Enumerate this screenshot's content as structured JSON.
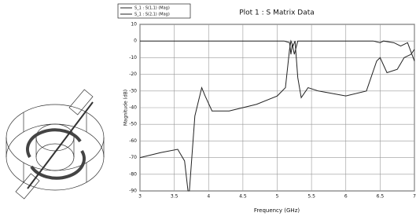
{
  "chart_data": {
    "type": "line",
    "title": "Plot 1 : S Matrix Data",
    "x_label": "Frequency (GHz)",
    "y_label": "Magnitude (dB)",
    "xlim": [
      3,
      7
    ],
    "ylim": [
      -90,
      10
    ],
    "xticks": [
      3,
      3.5,
      4,
      4.5,
      5,
      5.5,
      6,
      6.5,
      7
    ],
    "yticks": [
      10,
      0,
      -10,
      -20,
      -30,
      -40,
      -50,
      -60,
      -70,
      -80,
      -90
    ],
    "grid": true,
    "legend": "top-left",
    "series": [
      {
        "name": "S_1 : S(1,1) (Mag)",
        "color": "#222222",
        "x": [
          3,
          5.1,
          5.18,
          5.2,
          5.22,
          5.25,
          5.3,
          6.4,
          6.5,
          6.55,
          6.7,
          6.8,
          6.9,
          7
        ],
        "values": [
          0,
          0,
          -1,
          -8,
          -2,
          -8,
          0,
          0,
          -1,
          0,
          -1,
          -3,
          -1,
          -12
        ]
      },
      {
        "name": "S_1 : S(2,1) (Mag)",
        "color": "#222222",
        "x": [
          3,
          3.3,
          3.55,
          3.65,
          3.7,
          3.72,
          3.8,
          3.9,
          3.95,
          4.05,
          4.3,
          4.7,
          5.0,
          5.12,
          5.18,
          5.2,
          5.23,
          5.26,
          5.3,
          5.35,
          5.45,
          5.6,
          6.0,
          6.3,
          6.45,
          6.5,
          6.6,
          6.75,
          6.85,
          6.95,
          7
        ],
        "values": [
          -70,
          -67,
          -65,
          -72,
          -90,
          -90,
          -45,
          -28,
          -33,
          -42,
          -42,
          -38,
          -33,
          -28,
          -5,
          0,
          -3,
          0,
          -22,
          -34,
          -28,
          -30,
          -33,
          -30,
          -12,
          -10,
          -19,
          -17,
          -10,
          -8,
          -5
        ]
      }
    ]
  }
}
